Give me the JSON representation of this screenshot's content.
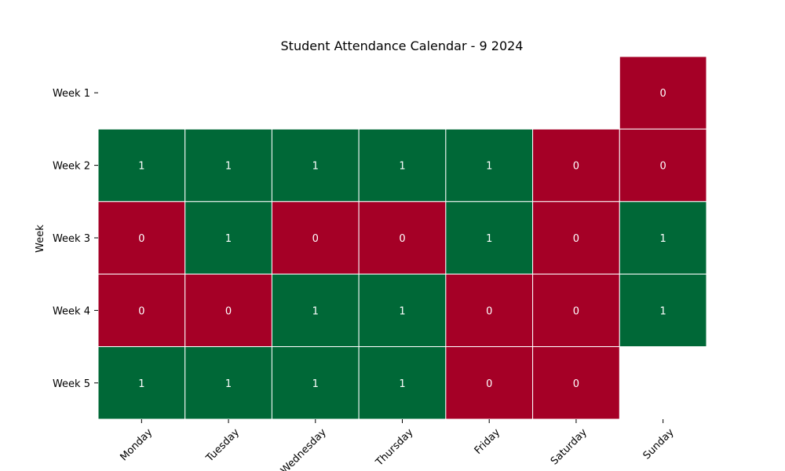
{
  "chart_data": {
    "type": "heatmap",
    "title": "Student Attendance Calendar - 9 2024",
    "xlabel": "",
    "ylabel": "Week",
    "x_categories": [
      "Monday",
      "Tuesday",
      "Wednesday",
      "Thursday",
      "Friday",
      "Saturday",
      "Sunday"
    ],
    "y_categories": [
      "Week 1",
      "Week 2",
      "Week 3",
      "Week 4",
      "Week 5"
    ],
    "values": [
      [
        null,
        null,
        null,
        null,
        null,
        null,
        0
      ],
      [
        1,
        1,
        1,
        1,
        1,
        0,
        0
      ],
      [
        0,
        1,
        0,
        0,
        1,
        0,
        1
      ],
      [
        0,
        0,
        1,
        1,
        0,
        0,
        1
      ],
      [
        1,
        1,
        1,
        1,
        0,
        0,
        null
      ]
    ],
    "colors": {
      "present": "#006837",
      "absent": "#a50026",
      "cell_text": "#ffffff"
    },
    "legend": "none"
  }
}
